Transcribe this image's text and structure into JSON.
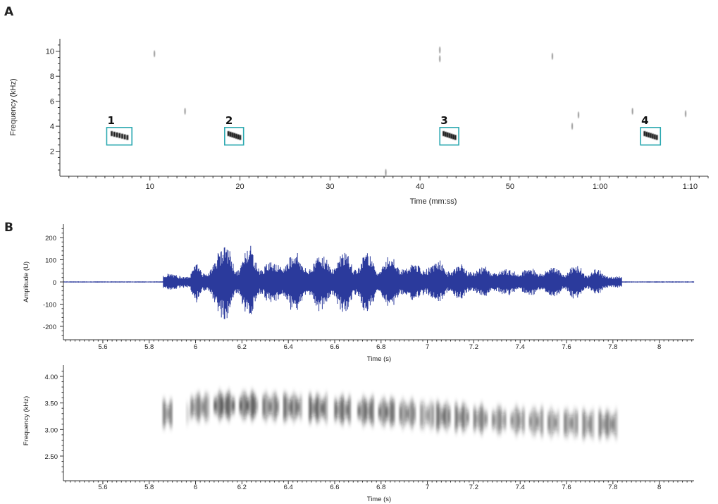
{
  "chart_data": [
    {
      "panel": "A",
      "type": "spectrogram",
      "xlabel": "Time (mm:ss)",
      "ylabel": "Frequency (kHz)",
      "xlim": [
        0,
        72
      ],
      "ylim": [
        0,
        11
      ],
      "x_ticks": [
        {
          "value": 10,
          "label": "10"
        },
        {
          "value": 20,
          "label": "20"
        },
        {
          "value": 30,
          "label": "30"
        },
        {
          "value": 40,
          "label": "40"
        },
        {
          "value": 50,
          "label": "50"
        },
        {
          "value": 60,
          "label": "1:00"
        },
        {
          "value": 70,
          "label": "1:10"
        }
      ],
      "y_ticks": [
        2,
        4,
        6,
        8,
        10
      ],
      "box_color": "#2aa8b0",
      "annotations": [
        {
          "label": "1",
          "t_start": 5.2,
          "t_end": 8.0,
          "f_low": 2.5,
          "f_high": 3.9
        },
        {
          "label": "2",
          "t_start": 18.3,
          "t_end": 20.4,
          "f_low": 2.5,
          "f_high": 3.9
        },
        {
          "label": "3",
          "t_start": 42.2,
          "t_end": 44.3,
          "f_low": 2.5,
          "f_high": 3.9
        },
        {
          "label": "4",
          "t_start": 64.5,
          "t_end": 66.7,
          "f_low": 2.5,
          "f_high": 3.9
        }
      ],
      "marks": [
        {
          "t": 10.5,
          "f": 9.8
        },
        {
          "t": 13.9,
          "f": 5.2
        },
        {
          "t": 36.2,
          "f": 0.3
        },
        {
          "t": 42.2,
          "f": 9.4
        },
        {
          "t": 42.2,
          "f": 10.1
        },
        {
          "t": 54.7,
          "f": 9.6
        },
        {
          "t": 56.9,
          "f": 4.0
        },
        {
          "t": 63.6,
          "f": 5.2
        },
        {
          "t": 69.5,
          "f": 5.0
        },
        {
          "t": 57.6,
          "f": 4.9
        }
      ]
    },
    {
      "panel": "B",
      "type": "waveform",
      "xlabel": "Time (s)",
      "ylabel": "Amplitude (U)",
      "xlim": [
        5.43,
        8.15
      ],
      "ylim": [
        -250,
        250
      ],
      "x_ticks": [
        5.6,
        5.8,
        6,
        6.2,
        6.4,
        6.6,
        6.8,
        7,
        7.2,
        7.4,
        7.6,
        7.8,
        8
      ],
      "y_ticks": [
        200,
        100,
        0,
        -100,
        -200
      ],
      "color": "#2b3a9c",
      "signal_start": 5.86,
      "signal_end": 7.84,
      "peak_envelope": [
        {
          "t": 5.88,
          "a": 40
        },
        {
          "t": 5.97,
          "a": 25
        },
        {
          "t": 6.0,
          "a": 100
        },
        {
          "t": 6.04,
          "a": 40
        },
        {
          "t": 6.13,
          "a": 180
        },
        {
          "t": 6.18,
          "a": 55
        },
        {
          "t": 6.23,
          "a": 185
        },
        {
          "t": 6.28,
          "a": 60
        },
        {
          "t": 6.33,
          "a": 110
        },
        {
          "t": 6.37,
          "a": 70
        },
        {
          "t": 6.43,
          "a": 150
        },
        {
          "t": 6.48,
          "a": 60
        },
        {
          "t": 6.54,
          "a": 140
        },
        {
          "t": 6.59,
          "a": 70
        },
        {
          "t": 6.64,
          "a": 155
        },
        {
          "t": 6.69,
          "a": 60
        },
        {
          "t": 6.74,
          "a": 160
        },
        {
          "t": 6.79,
          "a": 55
        },
        {
          "t": 6.84,
          "a": 140
        },
        {
          "t": 6.89,
          "a": 60
        },
        {
          "t": 6.94,
          "a": 90
        },
        {
          "t": 6.99,
          "a": 60
        },
        {
          "t": 7.05,
          "a": 105
        },
        {
          "t": 7.09,
          "a": 50
        },
        {
          "t": 7.14,
          "a": 90
        },
        {
          "t": 7.19,
          "a": 45
        },
        {
          "t": 7.24,
          "a": 75
        },
        {
          "t": 7.29,
          "a": 45
        },
        {
          "t": 7.34,
          "a": 65
        },
        {
          "t": 7.39,
          "a": 45
        },
        {
          "t": 7.45,
          "a": 70
        },
        {
          "t": 7.49,
          "a": 40
        },
        {
          "t": 7.54,
          "a": 80
        },
        {
          "t": 7.59,
          "a": 40
        },
        {
          "t": 7.64,
          "a": 85
        },
        {
          "t": 7.69,
          "a": 35
        },
        {
          "t": 7.73,
          "a": 65
        },
        {
          "t": 7.78,
          "a": 25
        },
        {
          "t": 7.82,
          "a": 30
        }
      ]
    },
    {
      "panel": "B",
      "type": "spectrogram",
      "xlabel": "Time (s)",
      "ylabel": "Frequency (kHz)",
      "xlim": [
        5.43,
        8.15
      ],
      "ylim": [
        2.1,
        4.2
      ],
      "x_ticks": [
        5.6,
        5.8,
        6,
        6.2,
        6.4,
        6.6,
        6.8,
        7,
        7.2,
        7.4,
        7.6,
        7.8,
        8
      ],
      "y_ticks": [
        {
          "value": 4.0,
          "label": "4.00"
        },
        {
          "value": 3.5,
          "label": "3.50"
        },
        {
          "value": 3.0,
          "label": "3.00"
        },
        {
          "value": 2.5,
          "label": "2.50"
        }
      ],
      "color": "#111111",
      "notes": [
        {
          "t_start": 5.86,
          "t_end": 5.9,
          "f_center": 3.3,
          "intensity": 0.75
        },
        {
          "t_start": 5.96,
          "t_end": 5.98,
          "f_center": 3.3,
          "intensity": 0.2
        },
        {
          "t_start": 5.98,
          "t_end": 6.06,
          "f_center": 3.42,
          "intensity": 0.75
        },
        {
          "t_start": 6.08,
          "t_end": 6.17,
          "f_center": 3.45,
          "intensity": 0.95
        },
        {
          "t_start": 6.19,
          "t_end": 6.27,
          "f_center": 3.45,
          "intensity": 0.95
        },
        {
          "t_start": 6.29,
          "t_end": 6.36,
          "f_center": 3.43,
          "intensity": 0.8
        },
        {
          "t_start": 6.38,
          "t_end": 6.46,
          "f_center": 3.42,
          "intensity": 0.85
        },
        {
          "t_start": 6.49,
          "t_end": 6.57,
          "f_center": 3.4,
          "intensity": 0.9
        },
        {
          "t_start": 6.6,
          "t_end": 6.67,
          "f_center": 3.37,
          "intensity": 0.85
        },
        {
          "t_start": 6.7,
          "t_end": 6.77,
          "f_center": 3.35,
          "intensity": 0.85
        },
        {
          "t_start": 6.79,
          "t_end": 6.86,
          "f_center": 3.33,
          "intensity": 0.85
        },
        {
          "t_start": 6.88,
          "t_end": 6.95,
          "f_center": 3.3,
          "intensity": 0.75
        },
        {
          "t_start": 6.97,
          "t_end": 7.03,
          "f_center": 3.27,
          "intensity": 0.6
        },
        {
          "t_start": 7.04,
          "t_end": 7.1,
          "f_center": 3.25,
          "intensity": 0.85
        },
        {
          "t_start": 7.12,
          "t_end": 7.18,
          "f_center": 3.23,
          "intensity": 0.8
        },
        {
          "t_start": 7.2,
          "t_end": 7.26,
          "f_center": 3.2,
          "intensity": 0.75
        },
        {
          "t_start": 7.28,
          "t_end": 7.34,
          "f_center": 3.18,
          "intensity": 0.7
        },
        {
          "t_start": 7.36,
          "t_end": 7.42,
          "f_center": 3.17,
          "intensity": 0.7
        },
        {
          "t_start": 7.44,
          "t_end": 7.5,
          "f_center": 3.15,
          "intensity": 0.7
        },
        {
          "t_start": 7.52,
          "t_end": 7.57,
          "f_center": 3.13,
          "intensity": 0.7
        },
        {
          "t_start": 7.59,
          "t_end": 7.65,
          "f_center": 3.12,
          "intensity": 0.7
        },
        {
          "t_start": 7.67,
          "t_end": 7.72,
          "f_center": 3.1,
          "intensity": 0.7
        },
        {
          "t_start": 7.74,
          "t_end": 7.82,
          "f_center": 3.1,
          "intensity": 0.75
        }
      ]
    }
  ],
  "panel_letters": {
    "a": "A",
    "b": "B"
  }
}
